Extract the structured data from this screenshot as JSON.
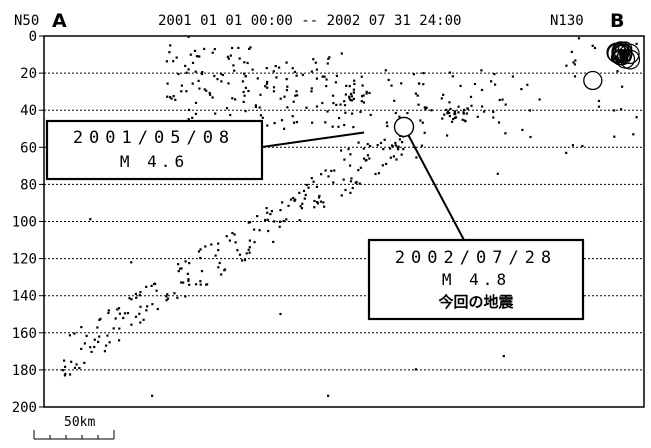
{
  "header": {
    "left_endpoint_coord": "N50",
    "left_endpoint_label": "A",
    "period": "2001 01 01 00:00 -- 2002 07 31 24:00",
    "right_endpoint_coord": "N130",
    "right_endpoint_label": "B"
  },
  "scale_bar": {
    "label": "50km",
    "length_km": 50
  },
  "colors": {
    "ink": "#000000",
    "grid": "#000000",
    "background": "#ffffff"
  },
  "chart_data": {
    "type": "scatter",
    "title": "",
    "xlabel": "",
    "ylabel": "",
    "x_unit": "km",
    "xlim": [
      0,
      375
    ],
    "ylim": [
      0,
      200
    ],
    "y_inverted": true,
    "y_ticks": [
      0,
      20,
      40,
      60,
      80,
      100,
      120,
      140,
      160,
      180,
      200
    ],
    "grid": {
      "horizontal": true,
      "style": "dotted"
    },
    "legend": "none",
    "annotations": [
      {
        "date": "2001/05/08",
        "magnitude": "M 4.6",
        "note": "",
        "x": 200,
        "y": 52
      },
      {
        "date": "2002/07/28",
        "magnitude": "M 4.8",
        "note": "今回の地震",
        "x": 225,
        "y": 49
      }
    ],
    "clusters": [
      {
        "name": "shallow-left-1",
        "x": [
          75,
          130
        ],
        "y": [
          5,
          45
        ],
        "n": 70,
        "seed": 11
      },
      {
        "name": "shallow-left-2",
        "x": [
          125,
          185
        ],
        "y": [
          10,
          50
        ],
        "n": 75,
        "seed": 12
      },
      {
        "name": "center-upper",
        "x": [
          185,
          238
        ],
        "y": [
          18,
          68
        ],
        "n": 55,
        "seed": 13
      },
      {
        "name": "right-band",
        "x": [
          238,
          315
        ],
        "y": [
          18,
          60
        ],
        "n": 40,
        "seed": 14
      },
      {
        "name": "dense-spot-1",
        "x": [
          250,
          265
        ],
        "y": [
          38,
          46
        ],
        "n": 22,
        "seed": 15
      },
      {
        "name": "dense-spot-2",
        "x": [
          190,
          205
        ],
        "y": [
          28,
          36
        ],
        "n": 14,
        "seed": 16
      },
      {
        "name": "dipping-slab",
        "x_start": 10,
        "x_end": 225,
        "y_start": 175,
        "y_end": 55,
        "spread_y": 22,
        "n": 210,
        "seed": 17
      },
      {
        "name": "far-right",
        "x": [
          325,
          372
        ],
        "y": [
          0,
          65
        ],
        "n": 22,
        "seed": 18
      },
      {
        "name": "sparse",
        "x": [
          10,
          340
        ],
        "y": [
          0,
          200
        ],
        "n": 18,
        "seed": 19
      }
    ],
    "dense_cluster": {
      "x": 362,
      "y": 10,
      "note": "many overlapping hypocenters"
    },
    "extra_circles": [
      {
        "x": 343,
        "y": 24
      }
    ]
  }
}
